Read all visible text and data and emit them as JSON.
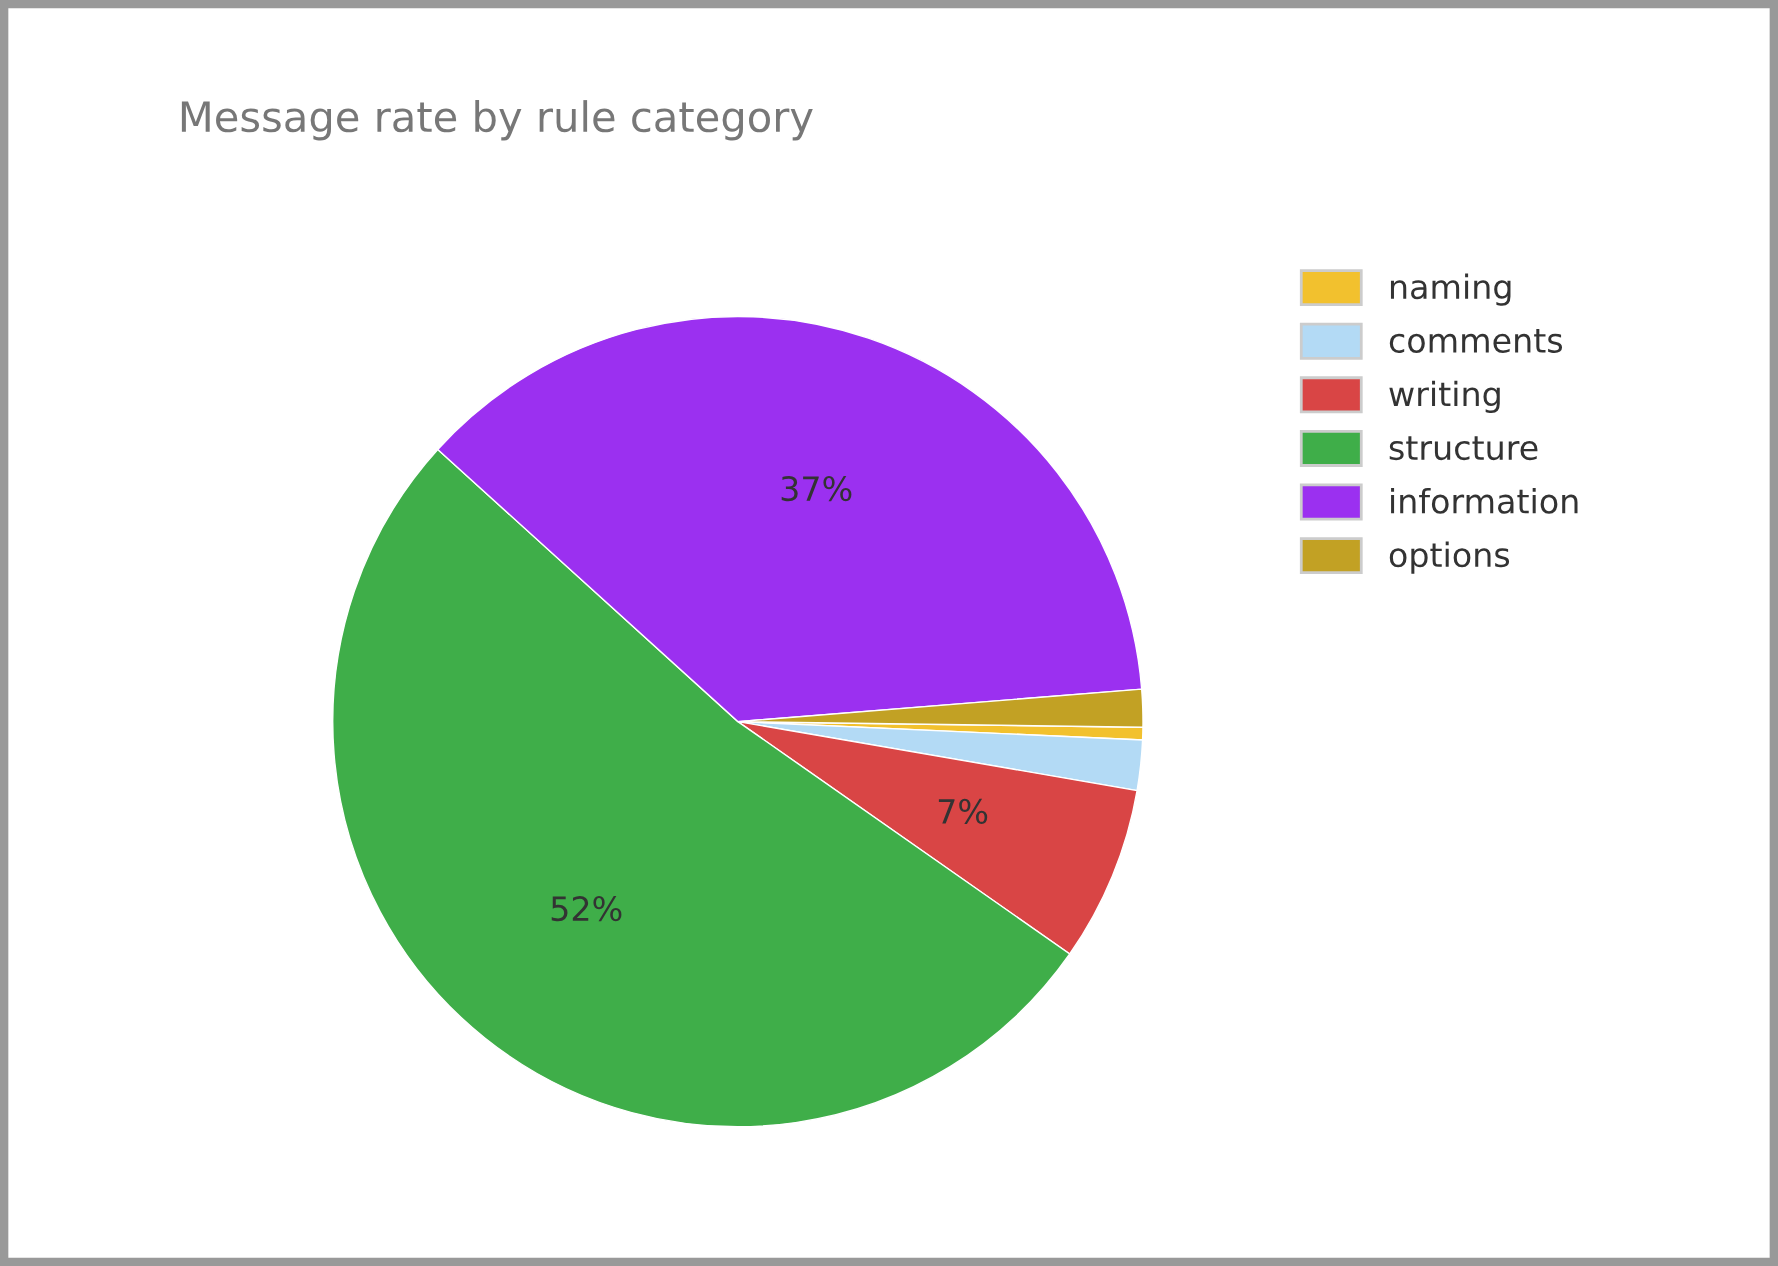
{
  "chart_data": {
    "type": "pie",
    "title": "Message rate by rule category",
    "categories": [
      "naming",
      "comments",
      "writing",
      "structure",
      "information",
      "options"
    ],
    "values": [
      0.5,
      2,
      7,
      52,
      37,
      1.5
    ],
    "colors": [
      "#f2c12e",
      "#b3daf5",
      "#d94545",
      "#3fae49",
      "#9b30f0",
      "#c2a124"
    ],
    "value_labels": [
      null,
      null,
      "7%",
      "52%",
      "37%",
      null
    ],
    "legend": "right"
  }
}
